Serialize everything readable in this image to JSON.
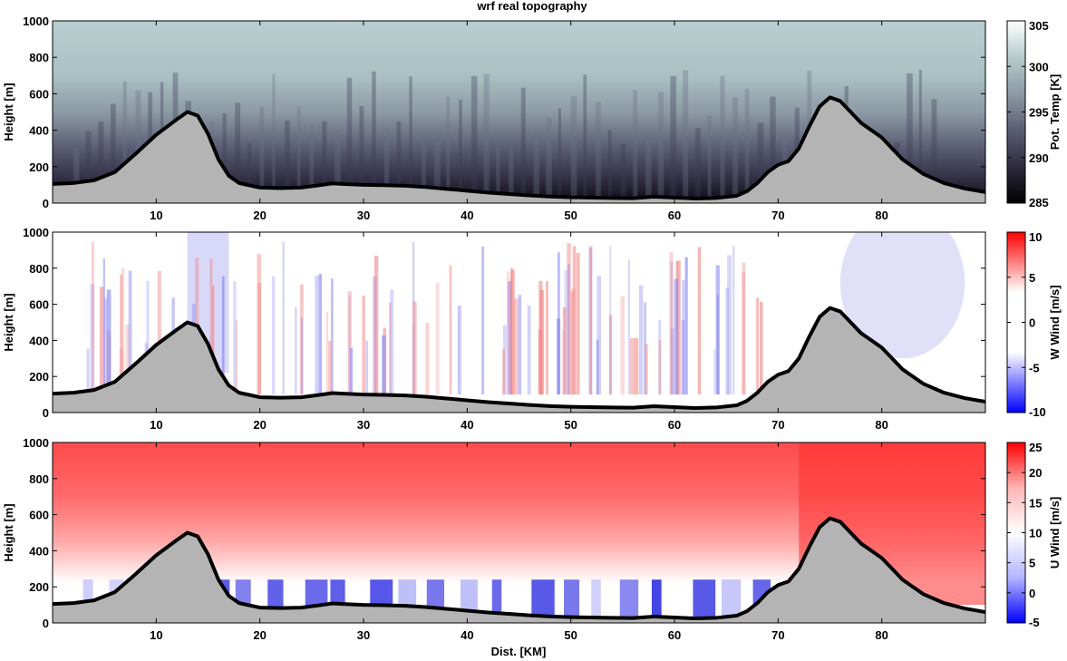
{
  "figure_title": "wrf real topography",
  "chart_data": [
    {
      "type": "heatmap",
      "name": "potential-temperature",
      "ylabel": "Height [m]",
      "xlabel": "",
      "xlim": [
        0,
        90
      ],
      "ylim": [
        0,
        1000
      ],
      "xticks": [
        10,
        20,
        30,
        40,
        50,
        60,
        70,
        80
      ],
      "yticks": [
        0,
        200,
        400,
        600,
        800,
        1000
      ],
      "colorbar": {
        "label": "Pot. Temp [K]",
        "range": [
          285,
          305
        ],
        "ticks": [
          285,
          290,
          295,
          300,
          305
        ],
        "stops": [
          "#000000",
          "#2e2b3f",
          "#5a5c74",
          "#8d9aa4",
          "#b5cbcc",
          "#ffffff"
        ]
      },
      "grid": false
    },
    {
      "type": "heatmap",
      "name": "vertical-wind",
      "ylabel": "Height [m]",
      "xlabel": "",
      "xlim": [
        0,
        90
      ],
      "ylim": [
        0,
        1000
      ],
      "xticks": [
        10,
        20,
        30,
        40,
        50,
        60,
        70,
        80
      ],
      "yticks": [
        0,
        200,
        400,
        600,
        800,
        1000
      ],
      "colorbar": {
        "label": "W Wind [m/s]",
        "range": [
          -10,
          10
        ],
        "ticks": [
          -10,
          -5,
          0,
          5,
          10
        ],
        "stops": [
          "#0000ff",
          "#ffffff",
          "#ffffff",
          "#ff0000"
        ]
      },
      "grid": false
    },
    {
      "type": "heatmap",
      "name": "u-wind",
      "ylabel": "Height [m]",
      "xlabel": "Dist. [KM]",
      "xlim": [
        0,
        90
      ],
      "ylim": [
        0,
        1000
      ],
      "xticks": [
        10,
        20,
        30,
        40,
        50,
        60,
        70,
        80
      ],
      "yticks": [
        0,
        200,
        400,
        600,
        800,
        1000
      ],
      "colorbar": {
        "label": "U Wind [m/s]",
        "range": [
          -5,
          25
        ],
        "ticks": [
          -5,
          0,
          5,
          10,
          15,
          20,
          25
        ],
        "stops": [
          "#0000ff",
          "#b4b4ff",
          "#ffffff",
          "#ffb4b4",
          "#ff0000"
        ]
      },
      "grid": false
    }
  ],
  "terrain": {
    "x": [
      0,
      2,
      4,
      6,
      8,
      10,
      12,
      13,
      14,
      15,
      16,
      17,
      18,
      20,
      22,
      24,
      26,
      27,
      28,
      30,
      32,
      34,
      36,
      38,
      40,
      42,
      44,
      46,
      48,
      50,
      52,
      54,
      56,
      58,
      60,
      62,
      64,
      66,
      67,
      68,
      69,
      70,
      71,
      72,
      73,
      74,
      75,
      76,
      77,
      78,
      79,
      80,
      81,
      82,
      84,
      86,
      88,
      90
    ],
    "height": [
      105,
      110,
      125,
      170,
      270,
      375,
      460,
      500,
      480,
      380,
      240,
      150,
      110,
      85,
      82,
      85,
      100,
      108,
      105,
      100,
      98,
      95,
      88,
      78,
      68,
      58,
      50,
      42,
      36,
      32,
      30,
      28,
      27,
      35,
      30,
      25,
      28,
      40,
      65,
      110,
      170,
      210,
      230,
      300,
      420,
      530,
      580,
      560,
      500,
      440,
      400,
      360,
      300,
      240,
      160,
      110,
      80,
      60
    ]
  }
}
